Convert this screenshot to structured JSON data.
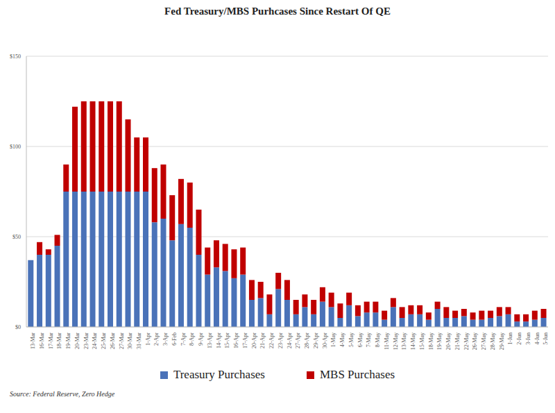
{
  "chart_data": {
    "type": "bar",
    "title": "Fed Treasury/MBS Purhcases Since Restart Of QE",
    "source": "Source: Federal Reserve, Zero Hedge",
    "stacked": true,
    "grid": true,
    "legend": "bottom",
    "ylim": [
      0,
      150
    ],
    "yticks": [
      {
        "value": 0,
        "label": "$0"
      },
      {
        "value": 50,
        "label": "$50"
      },
      {
        "value": 100,
        "label": "$100"
      },
      {
        "value": 150,
        "label": "$150"
      }
    ],
    "categories": [
      "13-Mar",
      "16-Mar",
      "17-Mar",
      "18-Mar",
      "19-Mar",
      "20-Mar",
      "23-Mar",
      "24-Mar",
      "25-Mar",
      "26-Mar",
      "27-Mar",
      "30-Mar",
      "31-Mar",
      "1-Apr",
      "2-Apr",
      "3-Apr",
      "6-Feb",
      "7-Apr",
      "8-Apr",
      "9-Apr",
      "13-Apr",
      "14-Apr",
      "15-Apr",
      "16-Apr",
      "17-Apr",
      "20-Apr",
      "21-Apr",
      "22-Apr",
      "23-Apr",
      "24-Apr",
      "27-Apr",
      "28-Apr",
      "29-Apr",
      "30-Apr",
      "1-May",
      "4-May",
      "5-May",
      "6-May",
      "7-May",
      "8-May",
      "11-May",
      "12-May",
      "13-May",
      "14-May",
      "15-May",
      "18-May",
      "19-May",
      "20-May",
      "21-May",
      "22-May",
      "26-May",
      "27-May",
      "28-May",
      "29-May",
      "1-Jun",
      "2-Jun",
      "3-Jun",
      "4-Jun",
      "5-Jun"
    ],
    "series": [
      {
        "name": "Treasury Purchases",
        "color": "#4a72b8",
        "values": [
          37,
          40,
          40,
          45,
          75,
          75,
          75,
          75,
          75,
          75,
          75,
          75,
          75,
          75,
          58,
          60,
          48,
          57,
          55,
          40,
          29,
          33,
          31,
          27,
          29,
          15,
          16,
          7,
          21,
          15,
          7,
          11,
          7,
          14,
          11,
          5,
          12,
          6,
          8,
          8,
          4,
          11,
          5,
          7,
          7,
          4,
          10,
          5,
          5,
          6,
          4,
          4,
          5,
          6,
          7,
          3,
          3,
          4,
          5
        ]
      },
      {
        "name": "MBS Purchases",
        "color": "#c00000",
        "values": [
          0,
          7,
          3,
          6,
          15,
          47,
          50,
          50,
          50,
          50,
          50,
          40,
          30,
          30,
          30,
          30,
          25,
          25,
          25,
          25,
          15,
          15,
          15,
          16,
          15,
          11,
          9,
          11,
          9,
          11,
          8,
          7,
          8,
          8,
          8,
          8,
          7,
          6,
          6,
          6,
          5,
          5,
          6,
          5,
          5,
          4,
          4,
          6,
          4,
          4,
          4,
          5,
          4,
          5,
          4,
          4,
          4,
          5,
          5
        ]
      }
    ]
  }
}
